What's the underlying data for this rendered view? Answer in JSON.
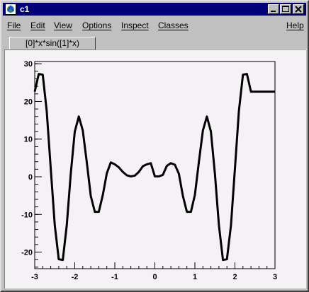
{
  "window": {
    "title": "c1"
  },
  "menu": {
    "file": "File",
    "edit": "Edit",
    "view": "View",
    "options": "Options",
    "inspect": "Inspect",
    "classes": "Classes",
    "help": "Help"
  },
  "canvas_tab": {
    "label": "[0]*x*sin([1]*x)"
  },
  "chart_data": {
    "type": "line",
    "title": "",
    "xlabel": "",
    "ylabel": "",
    "xlim": [
      -3,
      3
    ],
    "ylim": [
      -24.4,
      30.6
    ],
    "x_ticks": [
      -3,
      -2,
      -1,
      0,
      1,
      2,
      3
    ],
    "y_ticks": [
      -20,
      -10,
      0,
      10,
      20,
      30
    ],
    "x_tick_labels": [
      "-3",
      "-2",
      "-1",
      "0",
      "1",
      "2",
      "3"
    ],
    "y_tick_labels": [
      "-20",
      "-10",
      "0",
      "10",
      "20",
      "30"
    ],
    "series": [
      {
        "x": [
          -3.0,
          -2.9,
          -2.8,
          -2.7,
          -2.6,
          -2.5,
          -2.4,
          -2.3,
          -2.2,
          -2.1,
          -2.0,
          -1.9,
          -1.8,
          -1.7,
          -1.6,
          -1.5,
          -1.4,
          -1.3,
          -1.2,
          -1.1,
          -1.0,
          -0.9,
          -0.8,
          -0.7,
          -0.6,
          -0.5,
          -0.4,
          -0.3,
          -0.2,
          -0.1,
          0.0,
          0.1,
          0.2,
          0.3,
          0.4,
          0.5,
          0.6,
          0.7,
          0.8,
          0.9,
          1.0,
          1.1,
          1.2,
          1.3,
          1.4,
          1.5,
          1.6,
          1.7,
          1.8,
          1.9,
          2.0,
          2.1,
          2.2,
          2.3,
          2.4,
          2.5,
          2.6,
          2.7,
          2.8,
          2.9,
          3.0
        ],
        "y": [
          22.6,
          27.3,
          27.1,
          17.5,
          2.2,
          -12.9,
          -21.9,
          -22.1,
          -12.9,
          0.7,
          12.0,
          16.0,
          12.3,
          3.8,
          -5.1,
          -9.3,
          -9.3,
          -4.8,
          0.9,
          3.8,
          3.3,
          2.5,
          1.3,
          0.4,
          0.1,
          0.3,
          1.3,
          2.8,
          3.3,
          3.6,
          0.1,
          0.1,
          0.5,
          2.9,
          3.6,
          3.2,
          0.8,
          -5.1,
          -9.3,
          -9.3,
          -4.8,
          3.9,
          12.3,
          16.0,
          12.0,
          0.7,
          -12.9,
          -22.1,
          -21.9,
          -12.9,
          2.2,
          17.5,
          27.1,
          27.3,
          22.6,
          22.6,
          22.6,
          22.6,
          22.6,
          22.6,
          22.6
        ]
      }
    ]
  }
}
